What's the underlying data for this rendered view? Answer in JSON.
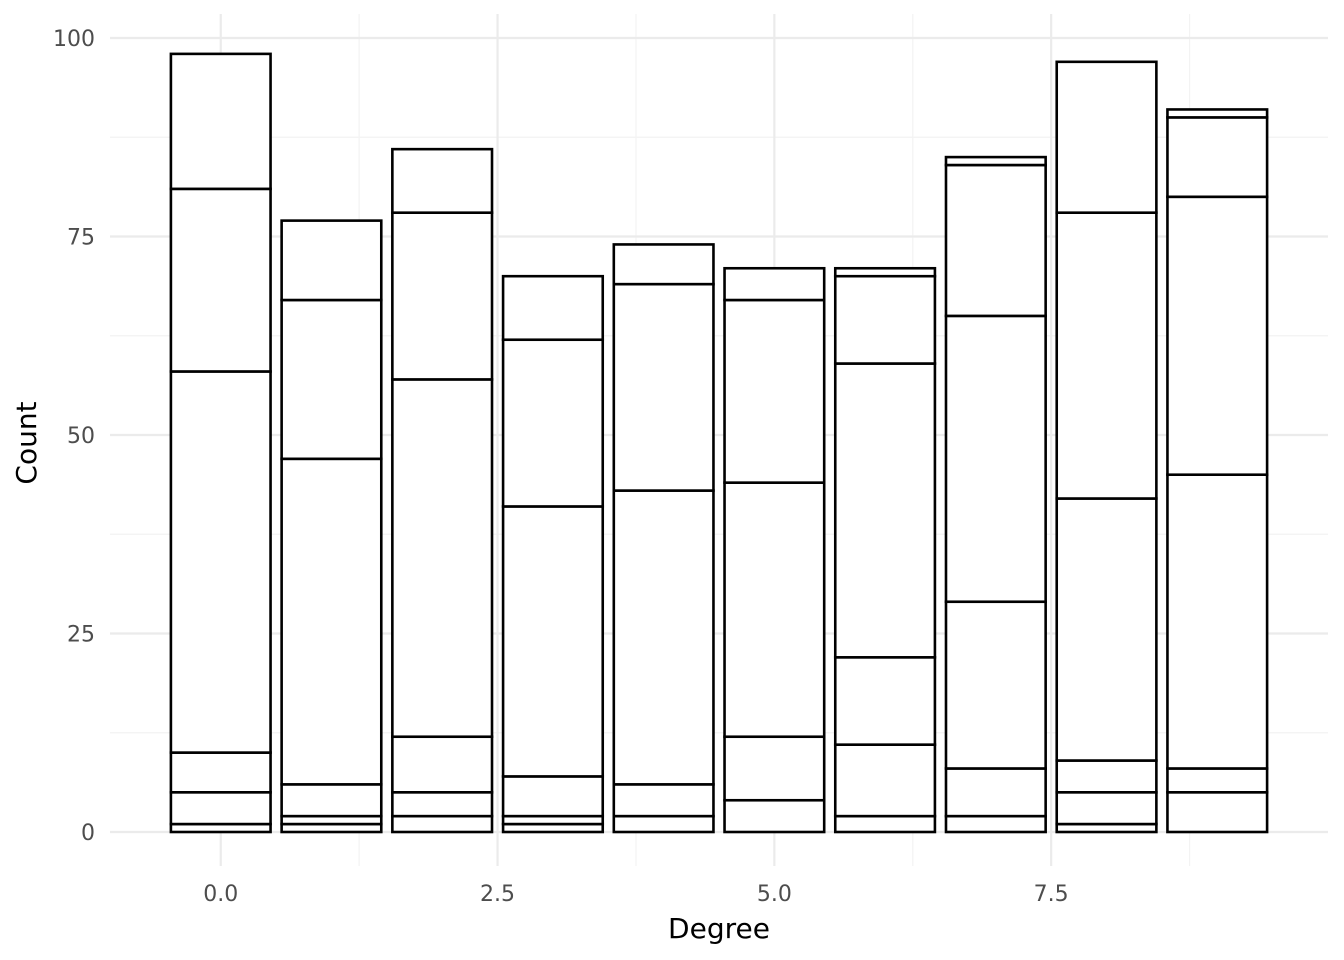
{
  "chart_data": {
    "type": "bar",
    "stacked": true,
    "xlabel": "Degree",
    "ylabel": "Count",
    "xlim": [
      -1,
      10
    ],
    "ylim": [
      0,
      100
    ],
    "x_ticks": [
      0,
      2.5,
      5,
      7.5
    ],
    "x_tick_labels": [
      "0.0",
      "2.5",
      "5.0",
      "7.5"
    ],
    "y_ticks": [
      0,
      25,
      50,
      75,
      100
    ],
    "y_tick_labels": [
      "0",
      "25",
      "50",
      "75",
      "100"
    ],
    "grid": true,
    "legend": "none",
    "colors": {
      "fill": "#ffffff",
      "outline": "#000000",
      "grid": "#ebebeb"
    },
    "x": [
      0,
      1,
      2,
      3,
      4,
      5,
      6,
      7,
      8,
      9
    ],
    "stack_boundaries": [
      [
        0,
        1,
        5,
        10,
        58,
        81,
        98
      ],
      [
        0,
        1,
        2,
        6,
        47,
        67,
        77
      ],
      [
        0,
        2,
        5,
        12,
        57,
        78,
        86
      ],
      [
        0,
        1,
        2,
        7,
        41,
        62,
        70
      ],
      [
        0,
        2,
        6,
        43,
        69,
        74
      ],
      [
        0,
        4,
        12,
        44,
        67,
        71
      ],
      [
        0,
        2,
        11,
        22,
        59,
        70,
        71
      ],
      [
        0,
        2,
        8,
        29,
        65,
        84,
        85
      ],
      [
        0,
        1,
        5,
        9,
        42,
        78,
        97
      ],
      [
        0,
        5,
        8,
        45,
        80,
        90,
        91
      ]
    ],
    "totals": [
      98,
      77,
      86,
      70,
      74,
      71,
      71,
      85,
      97,
      91
    ]
  }
}
